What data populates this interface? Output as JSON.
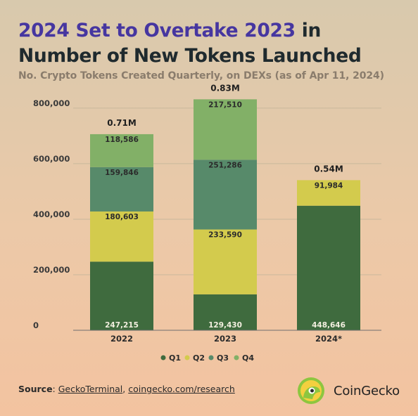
{
  "header": {
    "title_highlight": "2024 Set to Overtake 2023",
    "title_rest": " in",
    "title_line2": "Number of New Tokens Launched",
    "subtitle": "No. Crypto Tokens Created Quarterly, on DEXs (as of Apr 11, 2024)"
  },
  "chart_data": {
    "type": "bar",
    "stacked": true,
    "categories": [
      "2022",
      "2023",
      "2024*"
    ],
    "series": [
      {
        "name": "Q1",
        "color": "#3f6b3e",
        "values": [
          247215,
          129430,
          448646
        ],
        "labels": [
          "247,215",
          "129,430",
          "448,646"
        ]
      },
      {
        "name": "Q2",
        "color": "#d3cb4d",
        "values": [
          180603,
          233590,
          91984
        ],
        "labels": [
          "180,603",
          "233,590",
          "91,984"
        ]
      },
      {
        "name": "Q3",
        "color": "#578a6a",
        "values": [
          159846,
          251286,
          null
        ],
        "labels": [
          "159,846",
          "251,286",
          ""
        ]
      },
      {
        "name": "Q4",
        "color": "#82b067",
        "values": [
          118586,
          217510,
          null
        ],
        "labels": [
          "118,586",
          "217,510",
          ""
        ]
      }
    ],
    "totals": [
      "0.71M",
      "0.83M",
      "0.54M"
    ],
    "yticks": [
      "0",
      "200,000",
      "400,000",
      "600,000",
      "800,000"
    ],
    "ytick_values": [
      0,
      200000,
      400000,
      600000,
      800000
    ],
    "ylim": [
      0,
      820000
    ],
    "grid": true,
    "legend_position": "bottom",
    "xlabel": "",
    "ylabel": ""
  },
  "footer": {
    "source_label": "Source",
    "source_sep": ": ",
    "source_link1": "GeckoTerminal",
    "source_comma": ", ",
    "source_link2": "coingecko.com/research"
  },
  "brand": {
    "name": "CoinGecko",
    "logo_icon": "coingecko-gecko-icon"
  }
}
